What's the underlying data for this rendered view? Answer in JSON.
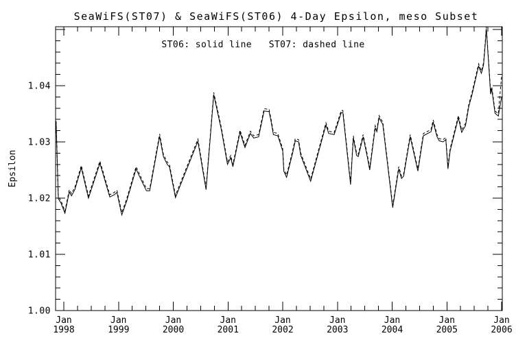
{
  "title": "SeaWiFS(ST07) & SeaWiFS(ST06) 4-Day Epsilon, meso Subset",
  "legend_text": "ST06: solid line   ST07: dashed line",
  "colors": {
    "foreground": "#000000",
    "background": "#ffffff"
  },
  "chart_data": {
    "type": "line",
    "title": "SeaWiFS(ST07) & SeaWiFS(ST06) 4-Day Epsilon, meso Subset",
    "legend": "ST06: solid line   ST07: dashed line",
    "legend_position": "top-center-inside",
    "grid": false,
    "xlabel": "",
    "ylabel": "Epsilon",
    "xlim": [
      1997.85,
      2006.016
    ],
    "ylim": [
      1.0,
      1.0505
    ],
    "y_axis": {
      "title": "Epsilon",
      "tick_labels": [
        "1.00",
        "1.01",
        "1.02",
        "1.03",
        "1.04"
      ],
      "major_step": 0.01,
      "minor_step": 0.002
    },
    "x_axis": {
      "tick_month": "Jan",
      "tick_years": [
        1998,
        1999,
        2000,
        2001,
        2002,
        2003,
        2004,
        2005,
        2006
      ],
      "minor_step_years": 0.25
    },
    "series": [
      {
        "name": "ST06",
        "line_style": "solid",
        "x": [
          1997.86,
          1997.9,
          1997.95,
          1998.02,
          1998.1,
          1998.14,
          1998.2,
          1998.32,
          1998.45,
          1998.66,
          1998.84,
          1998.92,
          1998.97,
          1999.06,
          1999.15,
          1999.32,
          1999.4,
          1999.51,
          1999.57,
          1999.75,
          1999.82,
          1999.89,
          1999.93,
          2000.04,
          2000.17,
          2000.45,
          2000.6,
          2000.74,
          2000.88,
          2000.99,
          2001.05,
          2001.09,
          2001.22,
          2001.31,
          2001.41,
          2001.47,
          2001.56,
          2001.66,
          2001.75,
          2001.79,
          2001.83,
          2001.91,
          2002.0,
          2002.02,
          2002.07,
          2002.18,
          2002.23,
          2002.29,
          2002.33,
          2002.51,
          2002.79,
          2002.84,
          2002.94,
          2003.07,
          2003.1,
          2003.24,
          2003.29,
          2003.35,
          2003.38,
          2003.47,
          2003.54,
          2003.59,
          2003.69,
          2003.72,
          2003.76,
          2003.83,
          2004.01,
          2004.12,
          2004.17,
          2004.21,
          2004.33,
          2004.47,
          2004.57,
          2004.71,
          2004.75,
          2004.82,
          2004.86,
          2004.93,
          2004.98,
          2005.02,
          2005.06,
          2005.21,
          2005.27,
          2005.34,
          2005.4,
          2005.46,
          2005.53,
          2005.58,
          2005.63,
          2005.67,
          2005.7,
          2005.72,
          2005.76,
          2005.8,
          2005.82,
          2005.85,
          2005.88,
          2005.94,
          2006.0
        ],
        "y": [
          1.0333,
          1.0199,
          1.0191,
          1.0173,
          1.0211,
          1.0204,
          1.0215,
          1.0254,
          1.02,
          1.0262,
          1.0202,
          1.0206,
          1.021,
          1.017,
          1.0195,
          1.0252,
          1.0235,
          1.0213,
          1.0213,
          1.031,
          1.0274,
          1.026,
          1.0256,
          1.0201,
          1.0233,
          1.0301,
          1.0215,
          1.0384,
          1.0321,
          1.026,
          1.0272,
          1.0256,
          1.0317,
          1.029,
          1.0315,
          1.0307,
          1.0309,
          1.0355,
          1.0354,
          1.0335,
          1.0313,
          1.0311,
          1.0284,
          1.0248,
          1.0237,
          1.028,
          1.0302,
          1.03,
          1.0276,
          1.023,
          1.033,
          1.0315,
          1.0313,
          1.0352,
          1.0352,
          1.0224,
          1.0307,
          1.0276,
          1.0274,
          1.0309,
          1.0276,
          1.025,
          1.0325,
          1.0318,
          1.0343,
          1.0331,
          1.0183,
          1.0252,
          1.0235,
          1.0239,
          1.0309,
          1.0248,
          1.0311,
          1.0318,
          1.0335,
          1.0309,
          1.0302,
          1.03,
          1.0304,
          1.0252,
          1.0284,
          1.0343,
          1.0317,
          1.0329,
          1.0363,
          1.0384,
          1.0414,
          1.0435,
          1.0422,
          1.0437,
          1.0473,
          1.0501,
          1.0443,
          1.0385,
          1.0394,
          1.0373,
          1.0351,
          1.0346,
          1.038
        ]
      },
      {
        "name": "ST07",
        "line_style": "dashed",
        "derived_from": "ST06",
        "note": "curve overlaps ST06 almost exactly; drawn as ST06 plus small offset, diverging upward at the final point",
        "y_offset": 0.0004,
        "final_y": 1.0418
      }
    ]
  }
}
